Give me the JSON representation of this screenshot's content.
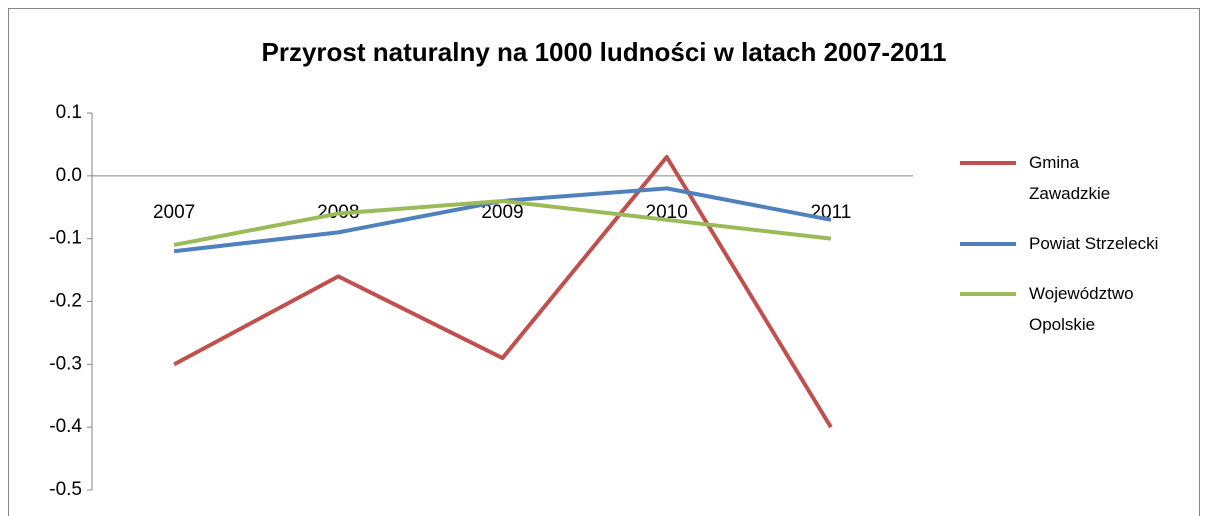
{
  "chart_data": {
    "type": "line",
    "title": "Przyrost naturalny na 1000 ludności w latach 2007-2011",
    "categories": [
      "2007",
      "2008",
      "2009",
      "2010",
      "2011"
    ],
    "series": [
      {
        "name": "Gmina Zawadzkie",
        "color": "#c0504d",
        "values": [
          -0.3,
          -0.16,
          -0.29,
          0.03,
          -0.4
        ]
      },
      {
        "name": "Powiat Strzelecki",
        "color": "#4f81bd",
        "values": [
          -0.12,
          -0.09,
          -0.04,
          -0.02,
          -0.07
        ]
      },
      {
        "name": "Województwo Opolskie",
        "color": "#9bbb59",
        "values": [
          -0.11,
          -0.06,
          -0.04,
          -0.07,
          -0.1
        ]
      }
    ],
    "ylim": [
      -0.5,
      0.1
    ],
    "yticks": [
      0.1,
      {
        "value": 0,
        "label": "0.0"
      },
      -0.1,
      -0.2,
      -0.3,
      -0.4,
      -0.5
    ],
    "grid": false,
    "legend": "right"
  }
}
